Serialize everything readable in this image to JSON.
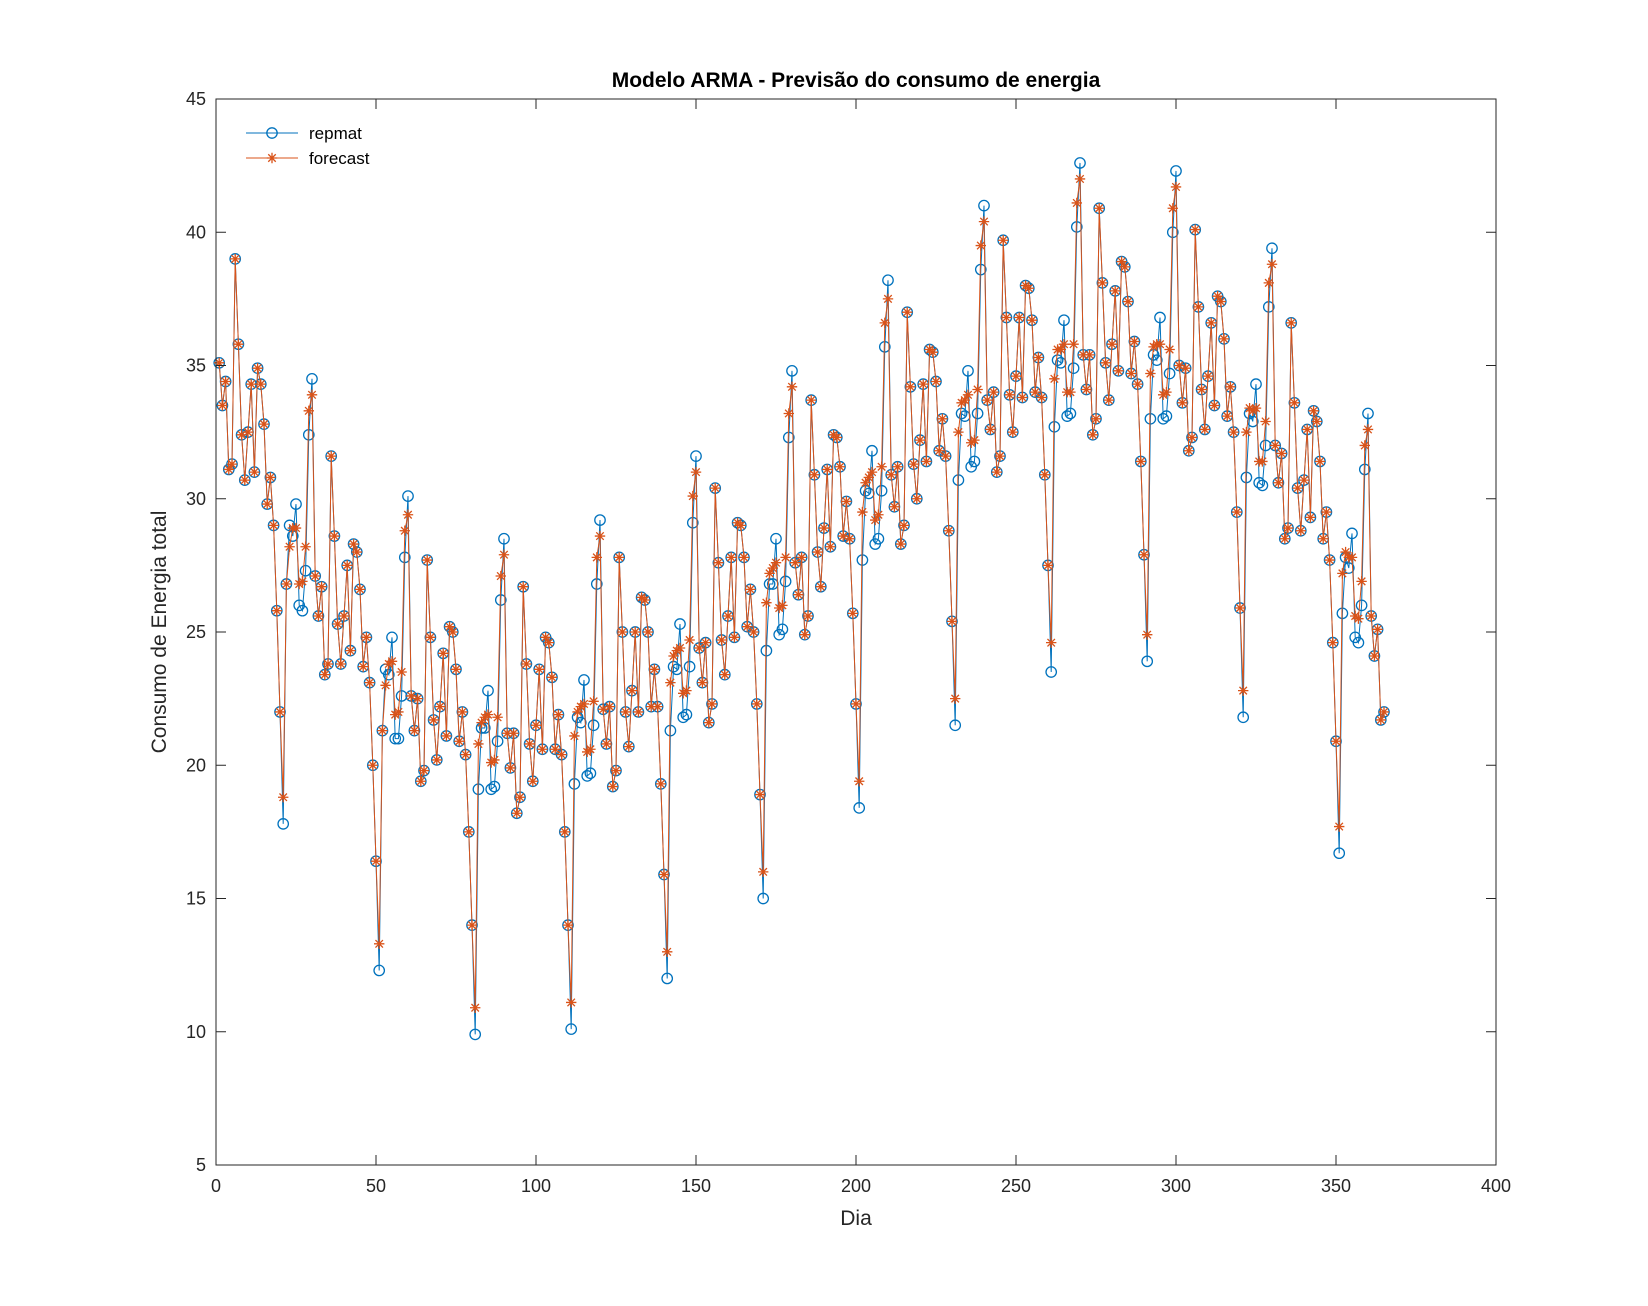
{
  "chart_data": {
    "type": "line",
    "title": "Modelo ARMA - Previsão do consumo de energia",
    "xlabel": "Dia",
    "ylabel": "Consumo de Energia total",
    "xlim": [
      0,
      400
    ],
    "ylim": [
      5,
      45
    ],
    "xticks": [
      0,
      50,
      100,
      150,
      200,
      250,
      300,
      350,
      400
    ],
    "yticks": [
      5,
      10,
      15,
      20,
      25,
      30,
      35,
      40,
      45
    ],
    "grid": false,
    "legend": "top-left",
    "x": [
      1,
      2,
      3,
      4,
      5,
      6,
      7,
      8,
      9,
      10,
      11,
      12,
      13,
      14,
      15,
      16,
      17,
      18,
      19,
      20,
      21,
      22,
      23,
      24,
      25,
      26,
      27,
      28,
      29,
      30,
      31,
      32,
      33,
      34,
      35,
      36,
      37,
      38,
      39,
      40,
      41,
      42,
      43,
      44,
      45,
      46,
      47,
      48,
      49,
      50,
      51,
      52,
      53,
      54,
      55,
      56,
      57,
      58,
      59,
      60,
      61,
      62,
      63,
      64,
      65,
      66,
      67,
      68,
      69,
      70,
      71,
      72,
      73,
      74,
      75,
      76,
      77,
      78,
      79,
      80,
      81,
      82,
      83,
      84,
      85,
      86,
      87,
      88,
      89,
      90,
      91,
      92,
      93,
      94,
      95,
      96,
      97,
      98,
      99,
      100,
      101,
      102,
      103,
      104,
      105,
      106,
      107,
      108,
      109,
      110,
      111,
      112,
      113,
      114,
      115,
      116,
      117,
      118,
      119,
      120,
      121,
      122,
      123,
      124,
      125,
      126,
      127,
      128,
      129,
      130,
      131,
      132,
      133,
      134,
      135,
      136,
      137,
      138,
      139,
      140,
      141,
      142,
      143,
      144,
      145,
      146,
      147,
      148,
      149,
      150,
      151,
      152,
      153,
      154,
      155,
      156,
      157,
      158,
      159,
      160,
      161,
      162,
      163,
      164,
      165,
      166,
      167,
      168,
      169,
      170,
      171,
      172,
      173,
      174,
      175,
      176,
      177,
      178,
      179,
      180,
      181,
      182,
      183,
      184,
      185,
      186,
      187,
      188,
      189,
      190,
      191,
      192,
      193,
      194,
      195,
      196,
      197,
      198,
      199,
      200,
      201,
      202,
      203,
      204,
      205,
      206,
      207,
      208,
      209,
      210,
      211,
      212,
      213,
      214,
      215,
      216,
      217,
      218,
      219,
      220,
      221,
      222,
      223,
      224,
      225,
      226,
      227,
      228,
      229,
      230,
      231,
      232,
      233,
      234,
      235,
      236,
      237,
      238,
      239,
      240,
      241,
      242,
      243,
      244,
      245,
      246,
      247,
      248,
      249,
      250,
      251,
      252,
      253,
      254,
      255,
      256,
      257,
      258,
      259,
      260,
      261,
      262,
      263,
      264,
      265,
      266,
      267,
      268,
      269,
      270,
      271,
      272,
      273,
      274,
      275,
      276,
      277,
      278,
      279,
      280,
      281,
      282,
      283,
      284,
      285,
      286,
      287,
      288,
      289,
      290,
      291,
      292,
      293,
      294,
      295,
      296,
      297,
      298,
      299,
      300,
      301,
      302,
      303,
      304,
      305,
      306,
      307,
      308,
      309,
      310,
      311,
      312,
      313,
      314,
      315,
      316,
      317,
      318,
      319,
      320,
      321,
      322,
      323,
      324,
      325,
      326,
      327,
      328,
      329,
      330,
      331,
      332,
      333,
      334,
      335,
      336,
      337,
      338,
      339,
      340,
      341,
      342,
      343,
      344,
      345,
      346,
      347,
      348,
      349,
      350,
      351,
      352,
      353,
      354,
      355,
      356,
      357,
      358,
      359,
      360,
      361,
      362,
      363,
      364,
      365
    ],
    "series": [
      {
        "name": "repmat",
        "color": "#0072BD",
        "marker": "circle",
        "values": [
          35.1,
          33.5,
          34.4,
          31.1,
          31.3,
          39.0,
          35.8,
          32.4,
          30.7,
          32.5,
          34.3,
          31.0,
          34.9,
          34.3,
          32.8,
          29.8,
          30.8,
          29.0,
          25.8,
          22.0,
          17.8,
          26.8,
          29.0,
          28.6,
          29.8,
          26.0,
          25.8,
          27.3,
          32.4,
          34.5,
          27.1,
          25.6,
          26.7,
          23.4,
          23.8,
          31.6,
          28.6,
          25.3,
          23.8,
          25.6,
          27.5,
          24.3,
          28.3,
          28.0,
          26.6,
          23.7,
          24.8,
          23.1,
          20.0,
          16.4,
          12.3,
          21.3,
          23.6,
          23.4,
          24.8,
          21.0,
          21.0,
          22.6,
          27.8,
          30.1,
          22.6,
          21.3,
          22.5,
          19.4,
          19.8,
          27.7,
          24.8,
          21.7,
          20.2,
          22.2,
          24.2,
          21.1,
          25.2,
          25.0,
          23.6,
          20.9,
          22.0,
          20.4,
          17.5,
          14.0,
          9.9,
          19.1,
          21.4,
          21.4,
          22.8,
          19.1,
          19.2,
          20.9,
          26.2,
          28.5,
          21.2,
          19.9,
          21.2,
          18.2,
          18.8,
          26.7,
          23.8,
          20.8,
          19.4,
          21.5,
          23.6,
          20.6,
          24.8,
          24.6,
          23.3,
          20.6,
          21.9,
          20.4,
          17.5,
          14.0,
          10.1,
          19.3,
          21.8,
          21.6,
          23.2,
          19.6,
          19.7,
          21.5,
          26.8,
          29.2,
          22.1,
          20.8,
          22.2,
          19.2,
          19.8,
          27.8,
          25.0,
          22.0,
          20.7,
          22.8,
          25.0,
          22.0,
          26.3,
          26.2,
          25.0,
          22.2,
          23.6,
          22.2,
          19.3,
          15.9,
          12.0,
          21.3,
          23.7,
          23.6,
          25.3,
          21.8,
          21.9,
          23.7,
          29.1,
          31.6,
          24.4,
          23.1,
          24.6,
          21.6,
          22.3,
          30.4,
          27.6,
          24.7,
          23.4,
          25.6,
          27.8,
          24.8,
          29.1,
          29.0,
          27.8,
          25.2,
          26.6,
          25.0,
          22.3,
          18.9,
          15.0,
          24.3,
          26.8,
          26.8,
          28.5,
          24.9,
          25.1,
          26.9,
          32.3,
          34.8,
          27.6,
          26.4,
          27.8,
          24.9,
          25.6,
          33.7,
          30.9,
          28.0,
          26.7,
          28.9,
          31.1,
          28.2,
          32.4,
          32.3,
          31.2,
          28.6,
          29.9,
          28.5,
          25.7,
          22.3,
          18.4,
          27.7,
          30.3,
          30.2,
          31.8,
          28.3,
          28.5,
          30.3,
          35.7,
          38.2,
          30.9,
          29.7,
          31.2,
          28.3,
          29.0,
          37.0,
          34.2,
          31.3,
          30.0,
          32.2,
          34.3,
          31.4,
          35.6,
          35.5,
          34.4,
          31.8,
          33.0,
          31.6,
          28.8,
          25.4,
          21.5,
          30.7,
          33.2,
          33.1,
          34.8,
          31.2,
          31.4,
          33.2,
          38.6,
          41.0,
          33.7,
          32.6,
          34.0,
          31.0,
          31.6,
          39.7,
          36.8,
          33.9,
          32.5,
          34.6,
          36.8,
          33.8,
          38.0,
          37.9,
          36.7,
          34.0,
          35.3,
          33.8,
          30.9,
          27.5,
          23.5,
          32.7,
          35.2,
          35.1,
          36.7,
          33.1,
          33.2,
          34.9,
          40.2,
          42.6,
          35.4,
          34.1,
          35.4,
          32.4,
          33.0,
          40.9,
          38.1,
          35.1,
          33.7,
          35.8,
          37.8,
          34.8,
          38.9,
          38.7,
          37.4,
          34.7,
          35.9,
          34.3,
          31.4,
          27.9,
          23.9,
          33.0,
          35.4,
          35.2,
          36.8,
          33.0,
          33.1,
          34.7,
          40.0,
          42.3,
          35.0,
          33.6,
          34.9,
          31.8,
          32.3,
          40.1,
          37.2,
          34.1,
          32.6,
          34.6,
          36.6,
          33.5,
          37.6,
          37.4,
          36.0,
          33.1,
          34.2,
          32.5,
          29.5,
          25.9,
          21.8,
          30.8,
          33.2,
          32.9,
          34.3,
          30.6,
          30.5,
          32.0,
          37.2,
          39.4,
          32.0,
          30.6,
          31.7,
          28.5,
          28.9,
          36.6,
          33.6,
          30.4,
          28.8,
          30.7,
          32.6,
          29.3,
          33.3,
          32.9,
          31.4,
          28.5,
          29.5,
          27.7,
          24.6,
          20.9,
          16.7,
          25.7,
          27.8,
          27.4,
          28.7,
          24.8,
          24.6,
          26.0,
          31.1,
          33.2,
          25.6,
          24.1,
          25.1,
          21.7,
          22.0
        ]
      },
      {
        "name": "forecast",
        "color": "#D95319",
        "marker": "asterisk",
        "values": [
          35.1,
          33.5,
          34.4,
          31.1,
          31.3,
          39.0,
          35.8,
          32.4,
          30.7,
          32.5,
          34.3,
          31.0,
          34.9,
          34.3,
          32.8,
          29.8,
          30.8,
          29.0,
          25.8,
          22.0,
          18.8,
          26.8,
          28.2,
          28.9,
          28.9,
          26.8,
          26.9,
          28.2,
          33.3,
          33.9,
          27.1,
          25.6,
          26.7,
          23.4,
          23.8,
          31.6,
          28.6,
          25.3,
          23.8,
          25.6,
          27.5,
          24.3,
          28.3,
          28.0,
          26.6,
          23.7,
          24.8,
          23.1,
          20.0,
          16.4,
          13.3,
          21.3,
          23.0,
          23.8,
          23.9,
          21.9,
          22.0,
          23.5,
          28.8,
          29.4,
          22.6,
          21.3,
          22.5,
          19.4,
          19.8,
          27.7,
          24.8,
          21.7,
          20.2,
          22.2,
          24.2,
          21.1,
          25.2,
          25.0,
          23.6,
          20.9,
          22.0,
          20.4,
          17.5,
          14.0,
          10.9,
          20.8,
          21.6,
          21.8,
          21.9,
          20.1,
          20.2,
          21.8,
          27.1,
          27.9,
          21.2,
          19.9,
          21.2,
          18.2,
          18.8,
          26.7,
          23.8,
          20.8,
          19.4,
          21.5,
          23.6,
          20.6,
          24.8,
          24.6,
          23.3,
          20.6,
          21.9,
          20.4,
          17.5,
          14.0,
          11.1,
          21.1,
          22.0,
          22.2,
          22.3,
          20.5,
          20.6,
          22.4,
          27.8,
          28.6,
          22.1,
          20.8,
          22.2,
          19.2,
          19.8,
          27.8,
          25.0,
          22.0,
          20.7,
          22.8,
          25.0,
          22.0,
          26.3,
          26.2,
          25.0,
          22.2,
          23.6,
          22.2,
          19.3,
          15.9,
          13.0,
          23.1,
          24.1,
          24.3,
          24.4,
          22.7,
          22.8,
          24.7,
          30.1,
          31.0,
          24.4,
          23.1,
          24.6,
          21.6,
          22.3,
          30.4,
          27.6,
          24.7,
          23.4,
          25.6,
          27.8,
          24.8,
          29.1,
          29.0,
          27.8,
          25.2,
          26.6,
          25.0,
          22.3,
          18.9,
          16.0,
          26.1,
          27.2,
          27.4,
          27.6,
          25.9,
          26.0,
          27.8,
          33.2,
          34.2,
          27.6,
          26.4,
          27.8,
          24.9,
          25.6,
          33.7,
          30.9,
          28.0,
          26.7,
          28.9,
          31.1,
          28.2,
          32.4,
          32.3,
          31.2,
          28.6,
          29.9,
          28.5,
          25.7,
          22.3,
          19.4,
          29.5,
          30.6,
          30.8,
          31.0,
          29.2,
          29.4,
          31.2,
          36.6,
          37.5,
          30.9,
          29.7,
          31.2,
          28.3,
          29.0,
          37.0,
          34.2,
          31.3,
          30.0,
          32.2,
          34.3,
          31.4,
          35.6,
          35.5,
          34.4,
          31.8,
          33.0,
          31.6,
          28.8,
          25.4,
          22.5,
          32.5,
          33.6,
          33.7,
          33.9,
          32.1,
          32.2,
          34.1,
          39.5,
          40.4,
          33.7,
          32.6,
          34.0,
          31.0,
          31.6,
          39.7,
          36.8,
          33.9,
          32.5,
          34.6,
          36.8,
          33.8,
          38.0,
          37.9,
          36.7,
          34.0,
          35.3,
          33.8,
          30.9,
          27.5,
          24.6,
          34.5,
          35.6,
          35.6,
          35.8,
          34.0,
          34.0,
          35.8,
          41.1,
          42.0,
          35.4,
          34.1,
          35.4,
          32.4,
          33.0,
          40.9,
          38.1,
          35.1,
          33.7,
          35.8,
          37.8,
          34.8,
          38.9,
          38.7,
          37.4,
          34.7,
          35.9,
          34.3,
          31.4,
          27.9,
          24.9,
          34.7,
          35.7,
          35.8,
          35.8,
          33.9,
          34.0,
          35.6,
          40.9,
          41.7,
          35.0,
          33.6,
          34.9,
          31.8,
          32.3,
          40.1,
          37.2,
          34.1,
          32.6,
          34.6,
          36.6,
          33.5,
          37.6,
          37.4,
          36.0,
          33.1,
          34.2,
          32.5,
          29.5,
          25.9,
          22.8,
          32.5,
          33.4,
          33.3,
          33.4,
          31.4,
          31.4,
          32.9,
          38.1,
          38.8,
          32.0,
          30.6,
          31.7,
          28.5,
          28.9,
          36.6,
          33.6,
          30.4,
          28.8,
          30.7,
          32.6,
          29.3,
          33.3,
          32.9,
          31.4,
          28.5,
          29.5,
          27.7,
          24.6,
          20.9,
          17.7,
          27.2,
          28.0,
          27.8,
          27.8,
          25.6,
          25.5,
          26.9,
          32.0,
          32.6,
          25.6,
          24.1,
          25.1,
          21.7,
          22.0
        ]
      }
    ]
  }
}
